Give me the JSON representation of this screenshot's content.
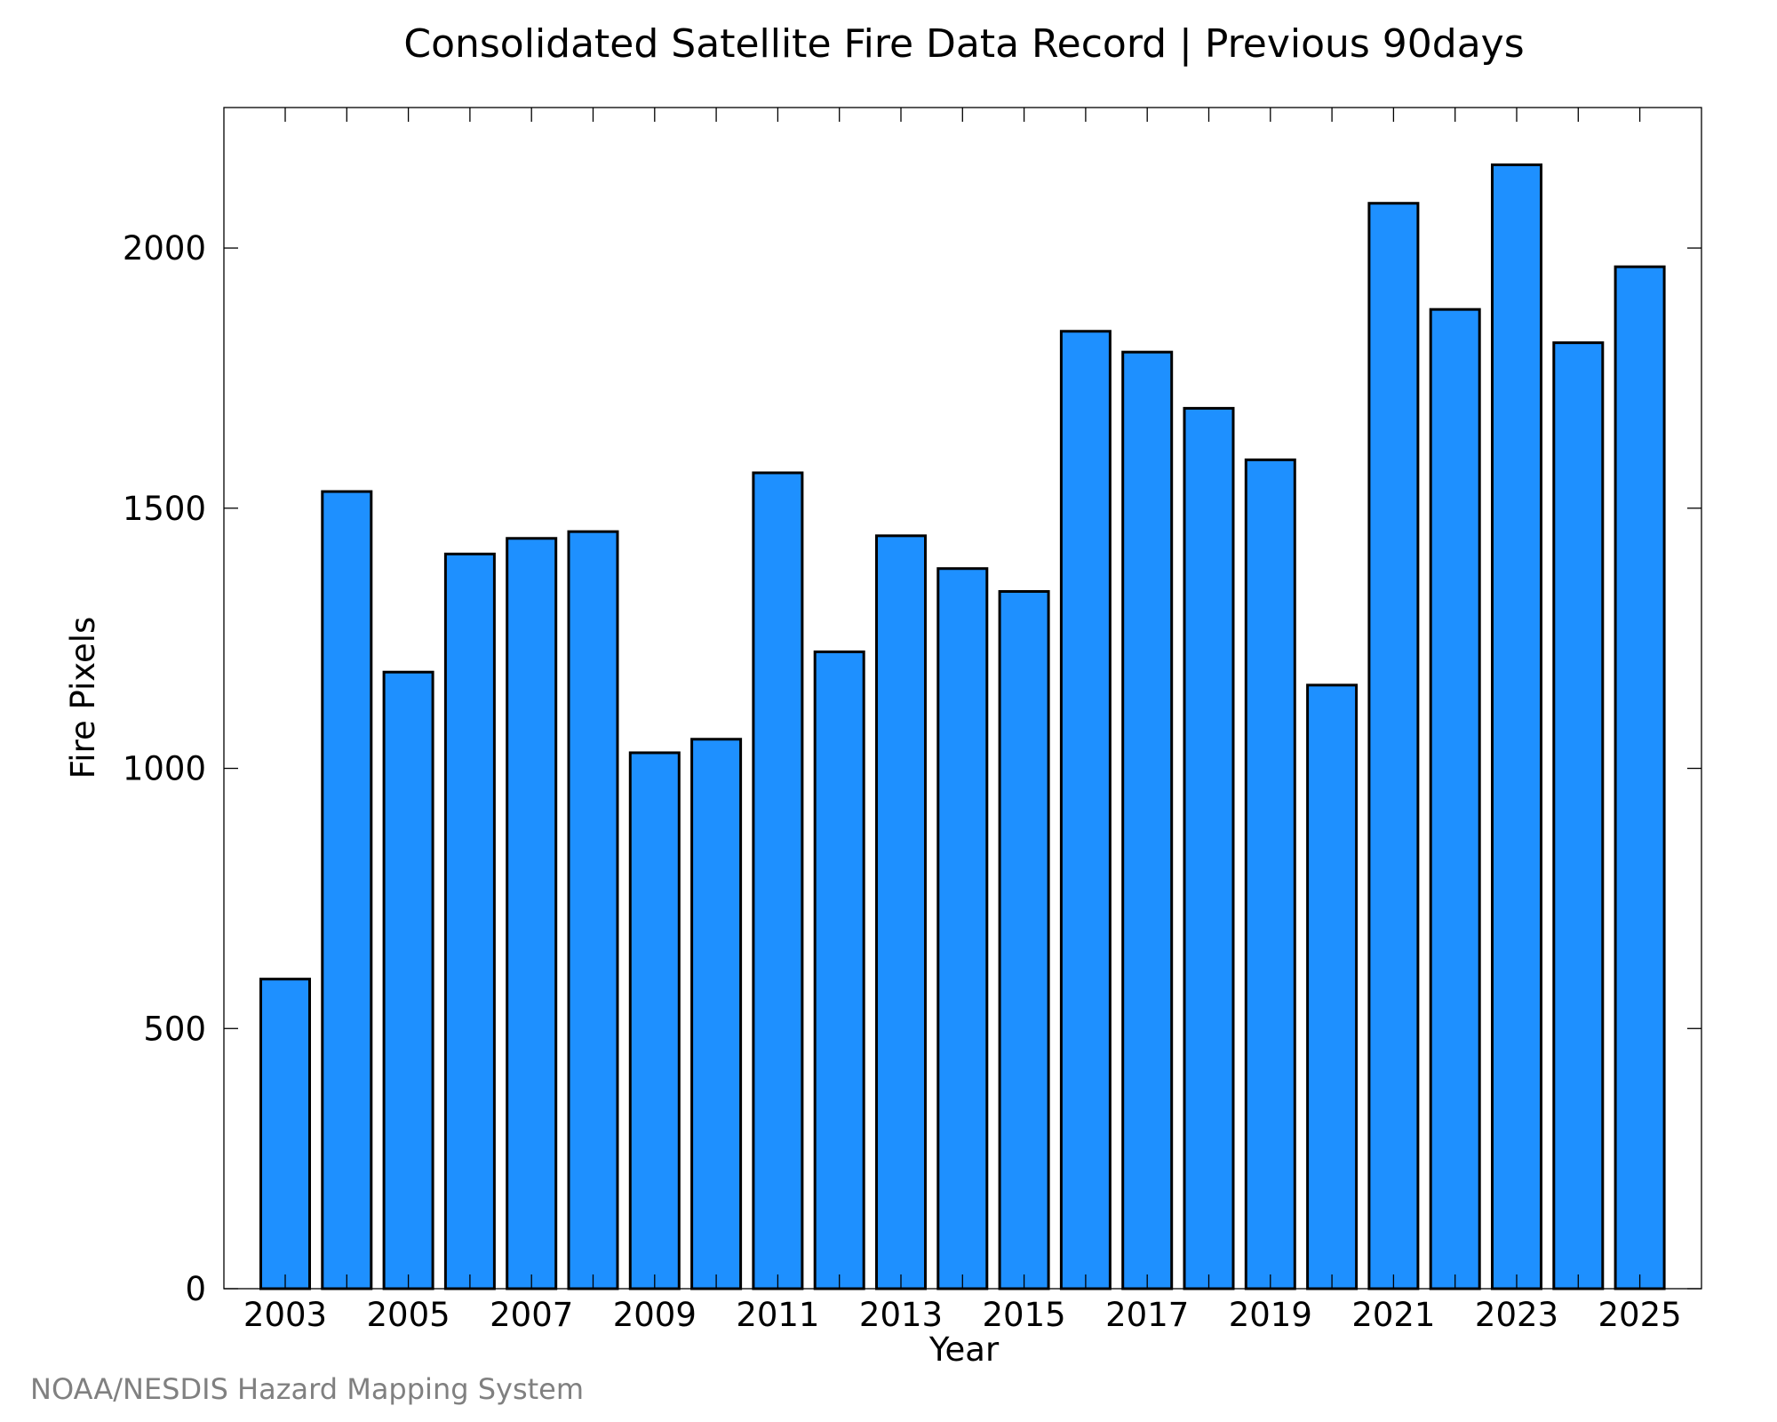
{
  "chart_data": {
    "type": "bar",
    "title": "Consolidated Satellite Fire Data Record | Previous 90days",
    "xlabel": "Year",
    "ylabel": "Fire Pixels",
    "categories": [
      "2003",
      "2004",
      "2005",
      "2006",
      "2007",
      "2008",
      "2009",
      "2010",
      "2011",
      "2012",
      "2013",
      "2014",
      "2015",
      "2016",
      "2017",
      "2018",
      "2019",
      "2020",
      "2021",
      "2022",
      "2023",
      "2024",
      "2025"
    ],
    "values": [
      595,
      1532,
      1185,
      1412,
      1442,
      1455,
      1030,
      1056,
      1568,
      1224,
      1447,
      1384,
      1340,
      1840,
      1800,
      1692,
      1593,
      1160,
      2086,
      1882,
      2160,
      1818,
      1964
    ],
    "x_tick_labels": [
      "2003",
      "2005",
      "2007",
      "2009",
      "2011",
      "2013",
      "2015",
      "2017",
      "2019",
      "2021",
      "2023",
      "2025"
    ],
    "y_ticks": [
      0,
      500,
      1000,
      1500,
      2000
    ],
    "ylim": [
      0,
      2270
    ],
    "grid": false,
    "bar_color": "#1e90ff",
    "credit": "NOAA/NESDIS Hazard Mapping System"
  }
}
